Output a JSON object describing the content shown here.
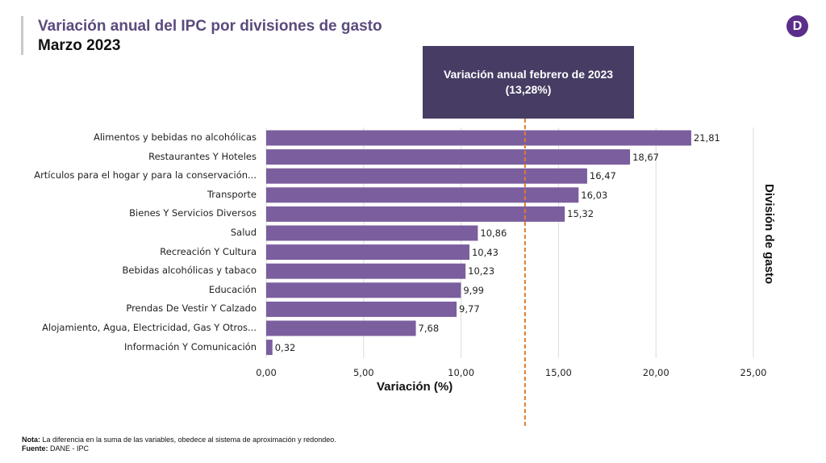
{
  "header": {
    "title": "Variación anual del IPC por divisiones de gasto",
    "subtitle": "Marzo 2023",
    "logo_letter": "D"
  },
  "callout": {
    "line1": "Variación anual febrero  de 2023",
    "line2": "(13,28%)"
  },
  "chart_data": {
    "type": "bar",
    "orientation": "horizontal",
    "title": "Variación anual del IPC por divisiones de gasto",
    "subtitle": "Marzo 2023",
    "categories": [
      "Alimentos y bebidas no alcohólicas",
      "Restaurantes Y Hoteles",
      "Artículos para el hogar y para la conservación...",
      "Transporte",
      "Bienes Y Servicios Diversos",
      "Salud",
      "Recreación Y Cultura",
      "Bebidas alcohólicas y tabaco",
      "Educación",
      "Prendas De Vestir Y Calzado",
      "Alojamiento, Agua, Electricidad, Gas Y Otros...",
      "Información Y Comunicación"
    ],
    "values": [
      21.81,
      18.67,
      16.47,
      16.03,
      15.32,
      10.86,
      10.43,
      10.23,
      9.99,
      9.77,
      7.68,
      0.32
    ],
    "value_labels": [
      "21,81",
      "18,67",
      "16,47",
      "16,03",
      "15,32",
      "10,86",
      "10,43",
      "10,23",
      "9,99",
      "9,77",
      "7,68",
      "0,32"
    ],
    "xlabel": "Variación (%)",
    "ylabel": "División de gasto",
    "xlim": [
      0,
      25
    ],
    "xticks": [
      0,
      5,
      10,
      15,
      20,
      25
    ],
    "xtick_labels": [
      "0,00",
      "5,00",
      "10,00",
      "15,00",
      "20,00",
      "25,00"
    ],
    "grid": true,
    "reference_line": {
      "value": 13.28,
      "label": "Variación anual febrero de 2023 (13,28%)",
      "style": "dashed"
    },
    "colors": {
      "bar": "#7b5e9e",
      "reference_line": "#e07b2a",
      "callout_bg": "#473c63",
      "title": "#5b4a7d"
    }
  },
  "footer": {
    "note_label": "Nota:",
    "note_text": " La diferencia en la suma de las variables, obedece al sistema de aproximación y redondeo.",
    "source_label": "Fuente:",
    "source_text": " DANE - IPC"
  }
}
